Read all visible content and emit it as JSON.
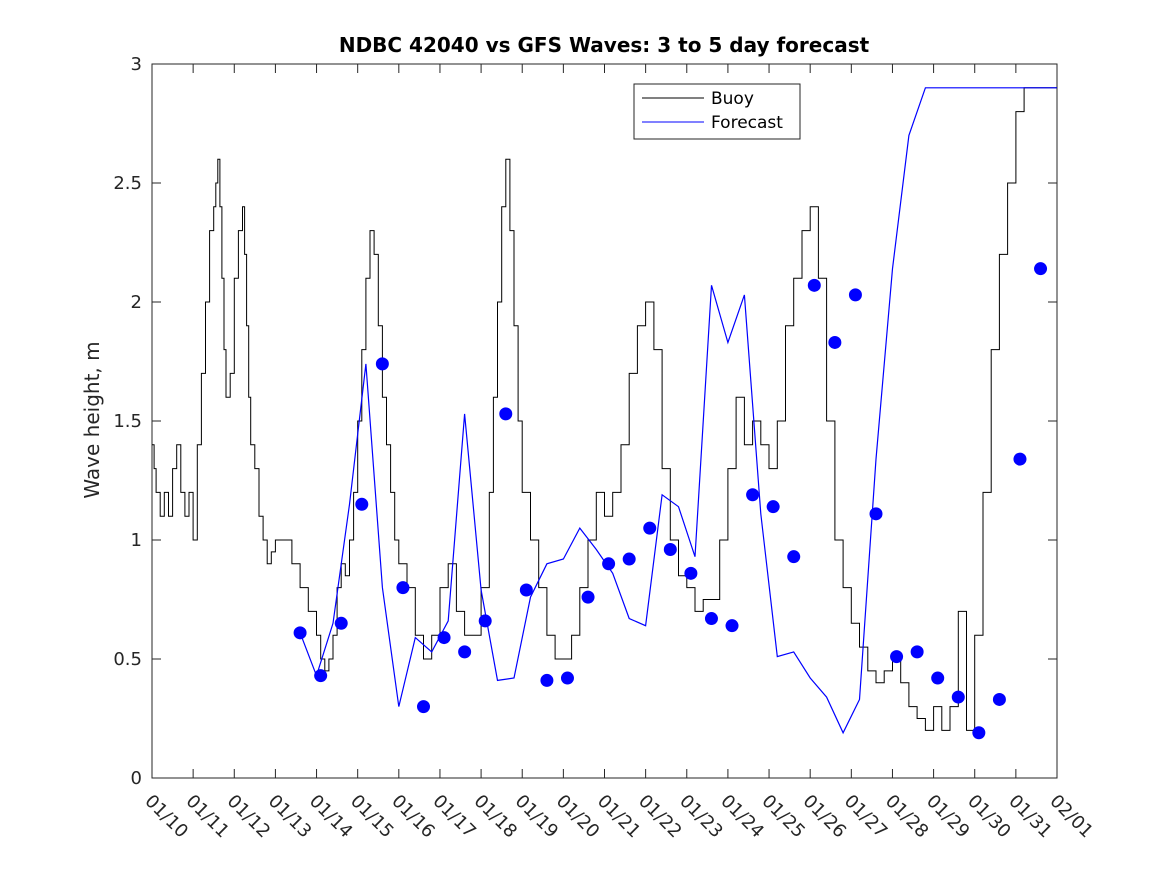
{
  "chart_data": {
    "type": "line",
    "title": "NDBC 42040 vs GFS Waves: 3 to 5 day forecast",
    "xlabel": "",
    "ylabel": "Wave height, m",
    "xlim": [
      0,
      22
    ],
    "ylim": [
      0,
      3
    ],
    "xticks": [
      0,
      1,
      2,
      3,
      4,
      5,
      6,
      7,
      8,
      9,
      10,
      11,
      12,
      13,
      14,
      15,
      16,
      17,
      18,
      19,
      20,
      21,
      22
    ],
    "xtick_labels": [
      "01/10",
      "01/11",
      "01/12",
      "01/13",
      "01/14",
      "01/15",
      "01/16",
      "01/17",
      "01/18",
      "01/19",
      "01/20",
      "01/21",
      "01/22",
      "01/23",
      "01/24",
      "01/25",
      "01/26",
      "01/27",
      "01/28",
      "01/29",
      "01/30",
      "01/31",
      "02/01"
    ],
    "yticks": [
      0,
      0.5,
      1,
      1.5,
      2,
      2.5,
      3
    ],
    "ytick_labels": [
      "0",
      "0.5",
      "1",
      "1.5",
      "2",
      "2.5",
      "3"
    ],
    "legend": {
      "position": "top-center",
      "entries": [
        "Buoy",
        "Forecast"
      ]
    },
    "colors": {
      "buoy": "#000000",
      "forecast": "#0000ff",
      "markers": "#0000ff"
    },
    "series": [
      {
        "name": "Buoy",
        "type": "step",
        "x": [
          0,
          0.05,
          0.1,
          0.2,
          0.3,
          0.4,
          0.5,
          0.6,
          0.7,
          0.8,
          0.9,
          1.0,
          1.1,
          1.2,
          1.3,
          1.4,
          1.5,
          1.55,
          1.6,
          1.65,
          1.7,
          1.75,
          1.8,
          1.9,
          2.0,
          2.1,
          2.2,
          2.25,
          2.3,
          2.35,
          2.4,
          2.5,
          2.6,
          2.7,
          2.8,
          2.9,
          3.0,
          3.2,
          3.4,
          3.6,
          3.8,
          4.0,
          4.1,
          4.2,
          4.3,
          4.4,
          4.5,
          4.6,
          4.7,
          4.8,
          4.9,
          5.0,
          5.1,
          5.2,
          5.3,
          5.4,
          5.5,
          5.6,
          5.7,
          5.8,
          5.9,
          6.0,
          6.2,
          6.4,
          6.6,
          6.8,
          7.0,
          7.2,
          7.4,
          7.6,
          7.8,
          8.0,
          8.2,
          8.3,
          8.4,
          8.5,
          8.6,
          8.7,
          8.8,
          8.9,
          9.0,
          9.2,
          9.4,
          9.6,
          9.8,
          10.0,
          10.2,
          10.4,
          10.6,
          10.8,
          11.0,
          11.2,
          11.4,
          11.6,
          11.8,
          12.0,
          12.2,
          12.4,
          12.6,
          12.8,
          13.0,
          13.2,
          13.4,
          13.6,
          13.8,
          14.0,
          14.2,
          14.4,
          14.6,
          14.8,
          15.0,
          15.2,
          15.4,
          15.6,
          15.8,
          16.0,
          16.2,
          16.4,
          16.6,
          16.8,
          17.0,
          17.2,
          17.4,
          17.6,
          17.8,
          18.0,
          18.2,
          18.4,
          18.6,
          18.8,
          19.0,
          19.2,
          19.4,
          19.6,
          19.8,
          20.0,
          20.2,
          20.4,
          20.6,
          20.8,
          21.0,
          21.2,
          21.4,
          21.6,
          21.8,
          22.0
        ],
        "y": [
          1.4,
          1.3,
          1.2,
          1.1,
          1.2,
          1.1,
          1.3,
          1.4,
          1.2,
          1.1,
          1.2,
          1.0,
          1.4,
          1.7,
          2.0,
          2.3,
          2.4,
          2.5,
          2.6,
          2.4,
          2.1,
          1.8,
          1.6,
          1.7,
          2.1,
          2.3,
          2.4,
          2.2,
          1.9,
          1.6,
          1.4,
          1.3,
          1.1,
          1.0,
          0.9,
          0.95,
          1.0,
          1.0,
          0.9,
          0.8,
          0.7,
          0.6,
          0.5,
          0.45,
          0.5,
          0.6,
          0.8,
          0.9,
          0.85,
          1.0,
          1.2,
          1.5,
          1.8,
          2.1,
          2.3,
          2.2,
          1.9,
          1.6,
          1.4,
          1.2,
          1.0,
          0.9,
          0.8,
          0.6,
          0.5,
          0.6,
          0.8,
          0.9,
          0.7,
          0.6,
          0.6,
          0.8,
          1.2,
          1.6,
          2.0,
          2.4,
          2.6,
          2.3,
          1.9,
          1.5,
          1.2,
          1.0,
          0.8,
          0.6,
          0.5,
          0.5,
          0.6,
          0.8,
          1.0,
          1.2,
          1.1,
          1.2,
          1.4,
          1.7,
          1.9,
          2.0,
          1.8,
          1.3,
          1.0,
          0.85,
          0.8,
          0.7,
          0.75,
          0.75,
          1.0,
          1.3,
          1.6,
          1.4,
          1.5,
          1.4,
          1.3,
          1.5,
          1.9,
          2.1,
          2.3,
          2.4,
          2.1,
          1.5,
          1.0,
          0.8,
          0.65,
          0.55,
          0.45,
          0.4,
          0.45,
          0.5,
          0.4,
          0.3,
          0.25,
          0.2,
          0.3,
          0.2,
          0.3,
          0.7,
          0.2,
          0.6,
          1.2,
          1.8,
          2.2,
          2.5,
          2.8,
          2.9,
          2.9,
          2.9,
          2.9,
          2.9
        ]
      },
      {
        "name": "Forecast",
        "type": "line",
        "x": [
          3.6,
          4.0,
          4.4,
          4.8,
          5.2,
          5.6,
          6.0,
          6.4,
          6.8,
          7.2,
          7.6,
          8.0,
          8.4,
          8.8,
          9.2,
          9.6,
          10.0,
          10.4,
          10.8,
          11.2,
          11.6,
          12.0,
          12.4,
          12.8,
          13.2,
          13.6,
          14.0,
          14.4,
          14.8,
          15.2,
          15.6,
          16.0,
          16.4,
          16.8,
          17.2,
          17.6,
          18.0,
          18.4,
          18.8,
          19.2,
          19.6,
          20.0,
          20.4,
          20.8,
          21.2,
          21.6,
          22.0
        ],
        "y": [
          0.61,
          0.43,
          0.65,
          1.15,
          1.74,
          0.8,
          0.3,
          0.59,
          0.53,
          0.66,
          1.53,
          0.79,
          0.41,
          0.42,
          0.76,
          0.9,
          0.92,
          1.05,
          0.96,
          0.86,
          0.67,
          0.64,
          1.19,
          1.14,
          0.93,
          2.07,
          1.83,
          2.03,
          1.11,
          0.51,
          0.53,
          0.42,
          0.34,
          0.19,
          0.33,
          1.34,
          2.14,
          2.7,
          2.9,
          2.9,
          2.9,
          2.9,
          2.9,
          2.9,
          2.9,
          2.9,
          2.9
        ]
      },
      {
        "name": "Forecast markers",
        "type": "scatter",
        "x": [
          3.6,
          4.1,
          4.6,
          5.1,
          5.6,
          6.1,
          6.6,
          7.1,
          7.6,
          8.1,
          8.6,
          9.1,
          9.6,
          10.1,
          10.6,
          11.1,
          11.6,
          12.1,
          12.6,
          13.1,
          13.6,
          14.1,
          14.6,
          15.1,
          15.6,
          16.1,
          16.6,
          17.1,
          17.6,
          18.1,
          18.6,
          19.1,
          19.6,
          20.1,
          20.6,
          21.1,
          21.6
        ],
        "y": [
          0.61,
          0.43,
          0.65,
          1.15,
          1.74,
          0.8,
          0.3,
          0.59,
          0.53,
          0.66,
          1.53,
          0.79,
          0.41,
          0.42,
          0.76,
          0.9,
          0.92,
          1.05,
          0.96,
          0.86,
          0.67,
          0.64,
          1.19,
          1.14,
          0.93,
          2.07,
          1.83,
          2.03,
          1.11,
          0.51,
          0.53,
          0.42,
          0.34,
          0.19,
          0.33,
          1.34,
          2.14
        ]
      }
    ]
  }
}
